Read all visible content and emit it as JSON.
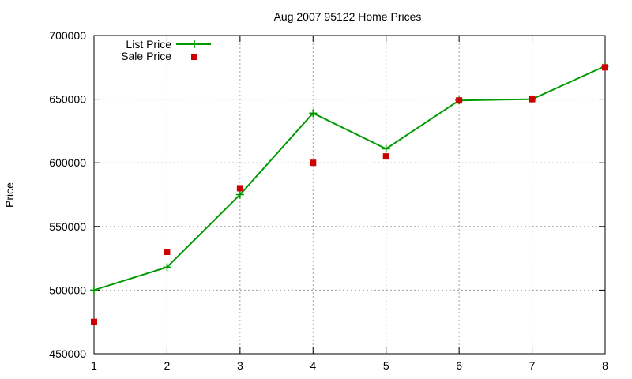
{
  "chart_data": {
    "type": "line",
    "title": "Aug 2007 95122 Home Prices",
    "xlabel": "",
    "ylabel": "Price",
    "xlim": [
      1,
      8
    ],
    "ylim": [
      450000,
      700000
    ],
    "xticks": [
      "1",
      "2",
      "3",
      "4",
      "5",
      "6",
      "7",
      "8"
    ],
    "yticks": [
      "450000",
      "500000",
      "550000",
      "600000",
      "650000",
      "700000"
    ],
    "grid": true,
    "legend_position": "top-left",
    "series": [
      {
        "name": "List Price",
        "style": "line with plus markers",
        "color": "#009900",
        "x": [
          1,
          2,
          3,
          4,
          5,
          6,
          7,
          8
        ],
        "values": [
          500000,
          518000,
          575000,
          639000,
          611000,
          649000,
          650000,
          676000
        ]
      },
      {
        "name": "Sale Price",
        "style": "square markers",
        "color": "#cc0000",
        "x": [
          1,
          2,
          3,
          4,
          5,
          6,
          7,
          8
        ],
        "values": [
          475000,
          530000,
          580000,
          600000,
          605000,
          649000,
          650000,
          675000
        ]
      }
    ]
  }
}
